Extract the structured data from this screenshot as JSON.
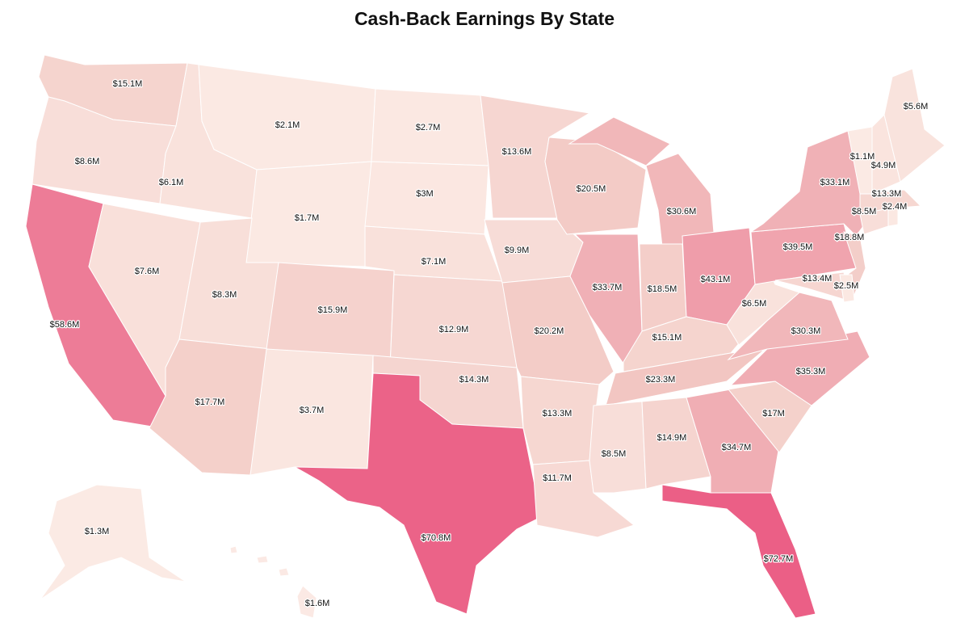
{
  "title": "Cash-Back Earnings By State",
  "chart_data": {
    "type": "choropleth",
    "title": "Cash-Back Earnings By State",
    "unit": "USD millions",
    "color_scale": {
      "low": "#fcece6",
      "mid": "#f2c9c4",
      "high": "#eb5f86"
    },
    "states": [
      {
        "id": "WA",
        "label": "$15.1M",
        "value": 15.1
      },
      {
        "id": "OR",
        "label": "$8.6M",
        "value": 8.6
      },
      {
        "id": "CA",
        "label": "$58.6M",
        "value": 58.6
      },
      {
        "id": "ID",
        "label": "$6.1M",
        "value": 6.1
      },
      {
        "id": "NV",
        "label": "$7.6M",
        "value": 7.6
      },
      {
        "id": "MT",
        "label": "$2.1M",
        "value": 2.1
      },
      {
        "id": "WY",
        "label": "$1.7M",
        "value": 1.7
      },
      {
        "id": "UT",
        "label": "$8.3M",
        "value": 8.3
      },
      {
        "id": "AZ",
        "label": "$17.7M",
        "value": 17.7
      },
      {
        "id": "CO",
        "label": "$15.9M",
        "value": 15.9
      },
      {
        "id": "NM",
        "label": "$3.7M",
        "value": 3.7
      },
      {
        "id": "ND",
        "label": "$2.7M",
        "value": 2.7
      },
      {
        "id": "SD",
        "label": "$3M",
        "value": 3.0
      },
      {
        "id": "NE",
        "label": "$7.1M",
        "value": 7.1
      },
      {
        "id": "KS",
        "label": "$12.9M",
        "value": 12.9
      },
      {
        "id": "OK",
        "label": "$14.3M",
        "value": 14.3
      },
      {
        "id": "TX",
        "label": "$70.8M",
        "value": 70.8
      },
      {
        "id": "MN",
        "label": "$13.6M",
        "value": 13.6
      },
      {
        "id": "IA",
        "label": "$9.9M",
        "value": 9.9
      },
      {
        "id": "MO",
        "label": "$20.2M",
        "value": 20.2
      },
      {
        "id": "AR",
        "label": "$13.3M",
        "value": 13.3
      },
      {
        "id": "LA",
        "label": "$11.7M",
        "value": 11.7
      },
      {
        "id": "WI",
        "label": "$20.5M",
        "value": 20.5
      },
      {
        "id": "IL",
        "label": "$33.7M",
        "value": 33.7
      },
      {
        "id": "MI",
        "label": "$30.6M",
        "value": 30.6
      },
      {
        "id": "IN",
        "label": "$18.5M",
        "value": 18.5
      },
      {
        "id": "OH",
        "label": "$43.1M",
        "value": 43.1
      },
      {
        "id": "KY",
        "label": "$15.1M",
        "value": 15.1
      },
      {
        "id": "TN",
        "label": "$23.3M",
        "value": 23.3
      },
      {
        "id": "MS",
        "label": "$8.5M",
        "value": 8.5
      },
      {
        "id": "AL",
        "label": "$14.9M",
        "value": 14.9
      },
      {
        "id": "GA",
        "label": "$34.7M",
        "value": 34.7
      },
      {
        "id": "FL",
        "label": "$72.7M",
        "value": 72.7
      },
      {
        "id": "SC",
        "label": "$17M",
        "value": 17.0
      },
      {
        "id": "NC",
        "label": "$35.3M",
        "value": 35.3
      },
      {
        "id": "VA",
        "label": "$30.3M",
        "value": 30.3
      },
      {
        "id": "WV",
        "label": "$6.5M",
        "value": 6.5
      },
      {
        "id": "PA",
        "label": "$39.5M",
        "value": 39.5
      },
      {
        "id": "NY",
        "label": "$33.1M",
        "value": 33.1
      },
      {
        "id": "NJ",
        "label": "$18.8M",
        "value": 18.8
      },
      {
        "id": "MD",
        "label": "$13.4M",
        "value": 13.4
      },
      {
        "id": "DE",
        "label": "$2.5M",
        "value": 2.5
      },
      {
        "id": "CT",
        "label": "$8.5M",
        "value": 8.5
      },
      {
        "id": "RI",
        "label": "$2.4M",
        "value": 2.4
      },
      {
        "id": "MA",
        "label": "$13.3M",
        "value": 13.3
      },
      {
        "id": "VT",
        "label": "$1.1M",
        "value": 1.1
      },
      {
        "id": "NH",
        "label": "$4.9M",
        "value": 4.9
      },
      {
        "id": "ME",
        "label": "$5.6M",
        "value": 5.6
      },
      {
        "id": "AK",
        "label": "$1.3M",
        "value": 1.3
      },
      {
        "id": "HI",
        "label": "$1.6M",
        "value": 1.6
      }
    ]
  }
}
